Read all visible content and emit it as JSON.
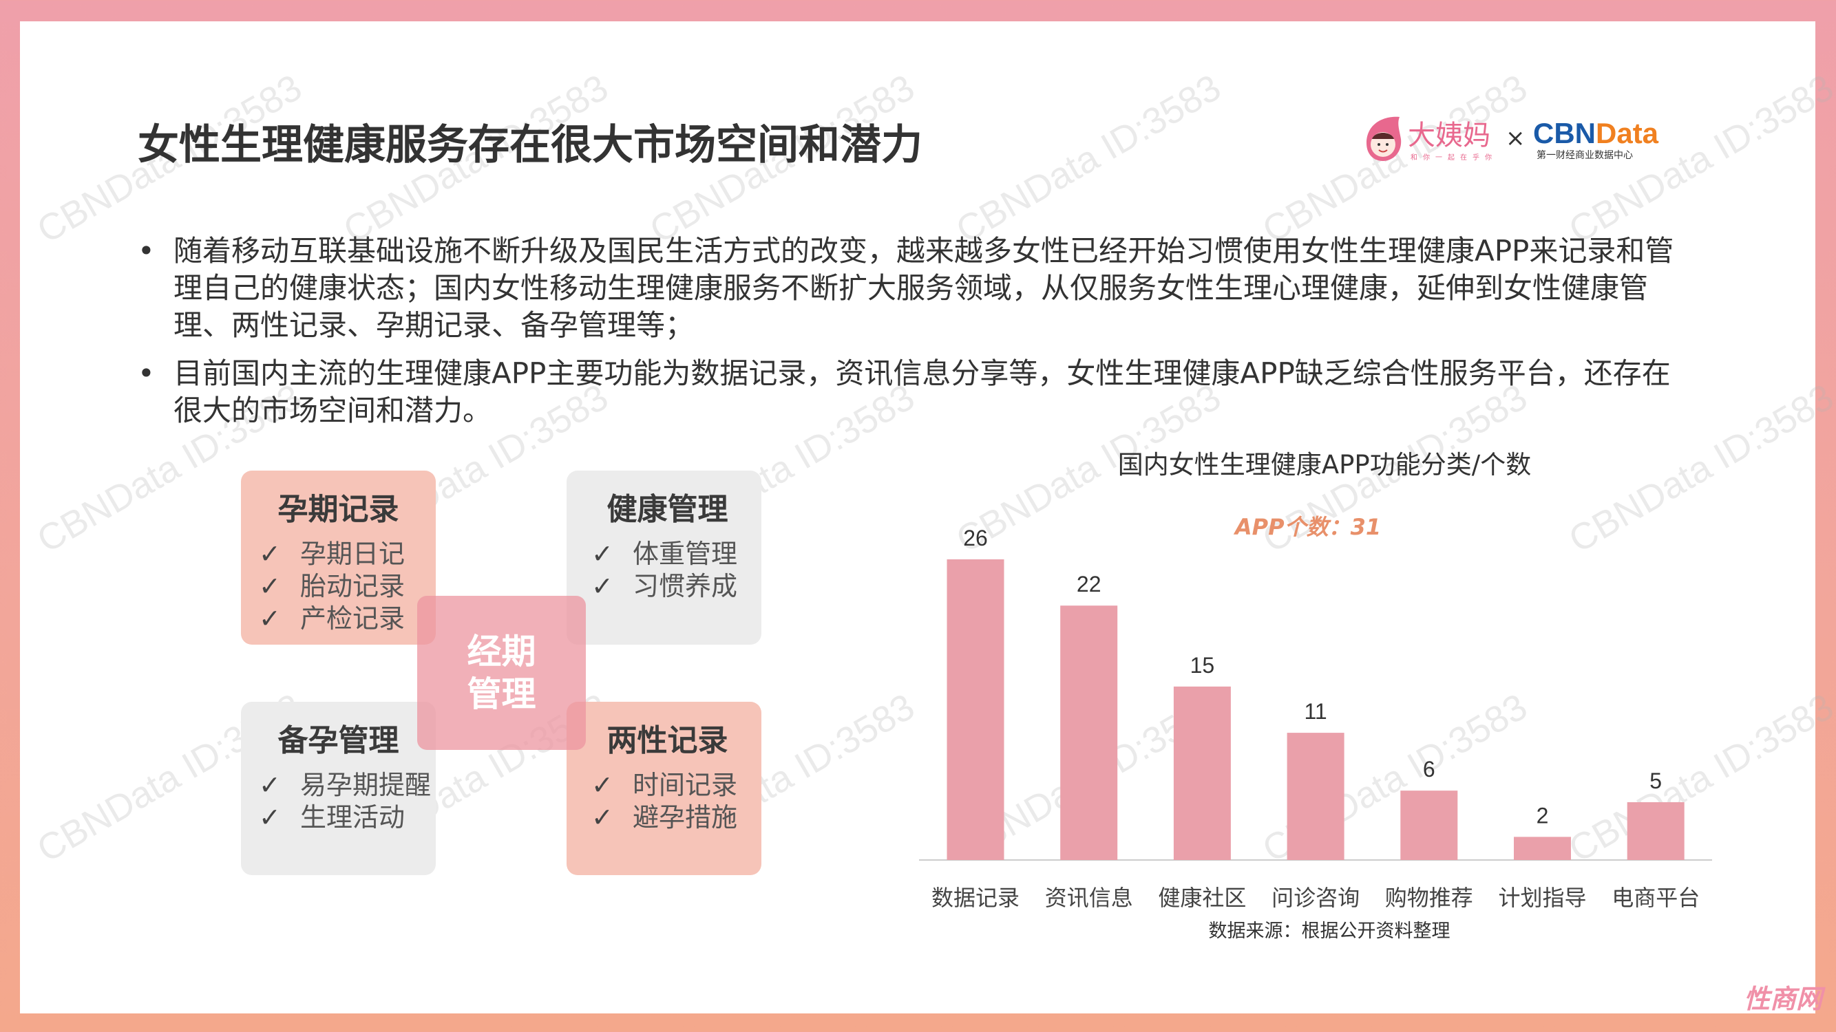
{
  "title": "女性生理健康服务存在很大市场空间和潜力",
  "logo": {
    "brand1": "大姨妈",
    "brand1_tagline": "和你一起在乎你",
    "times": "×",
    "brand2": "CBNData",
    "brand2_tagline": "第一财经商业数据中心"
  },
  "bullets": [
    "随着移动互联基础设施不断升级及国民生活方式的改变，越来越多女性已经开始习惯使用女性生理健康APP来记录和管理自己的健康状态；国内女性移动生理健康服务不断扩大服务领域，从仅服务女性生理心理健康，延伸到女性健康管理、两性记录、孕期记录、备孕管理等；",
    "目前国内主流的生理健康APP主要功能为数据记录，资讯信息分享等，女性生理健康APP缺乏综合性服务平台，还存在很大的市场空间和潜力。"
  ],
  "bullet_symbol": "•",
  "check": "✓",
  "diagram": {
    "center": "经期\n管理",
    "boxes": [
      {
        "title": "孕期记录",
        "items": [
          "孕期日记",
          "胎动记录",
          "产检记录"
        ]
      },
      {
        "title": "健康管理",
        "items": [
          "体重管理",
          "习惯养成"
        ]
      },
      {
        "title": "备孕管理",
        "items": [
          "易孕期提醒",
          "生理活动"
        ]
      },
      {
        "title": "两性记录",
        "items": [
          "时间记录",
          "避孕措施"
        ]
      }
    ]
  },
  "chart_data": {
    "type": "bar",
    "title": "国内女性生理健康APP功能分类/个数",
    "annotation": "APP个数：31",
    "categories": [
      "数据记录",
      "资讯信息",
      "健康社区",
      "问诊咨询",
      "购物推荐",
      "计划指导",
      "电商平台"
    ],
    "values": [
      26,
      22,
      15,
      11,
      6,
      2,
      5
    ],
    "ylim": [
      0,
      26
    ],
    "grid": false,
    "source": "数据来源：根据公开资料整理",
    "colors": {
      "bar": "#eaa0aa",
      "annotation": "#e8906a"
    }
  },
  "watermark": "CBNData ID:3583",
  "corner_mark": "性商网"
}
